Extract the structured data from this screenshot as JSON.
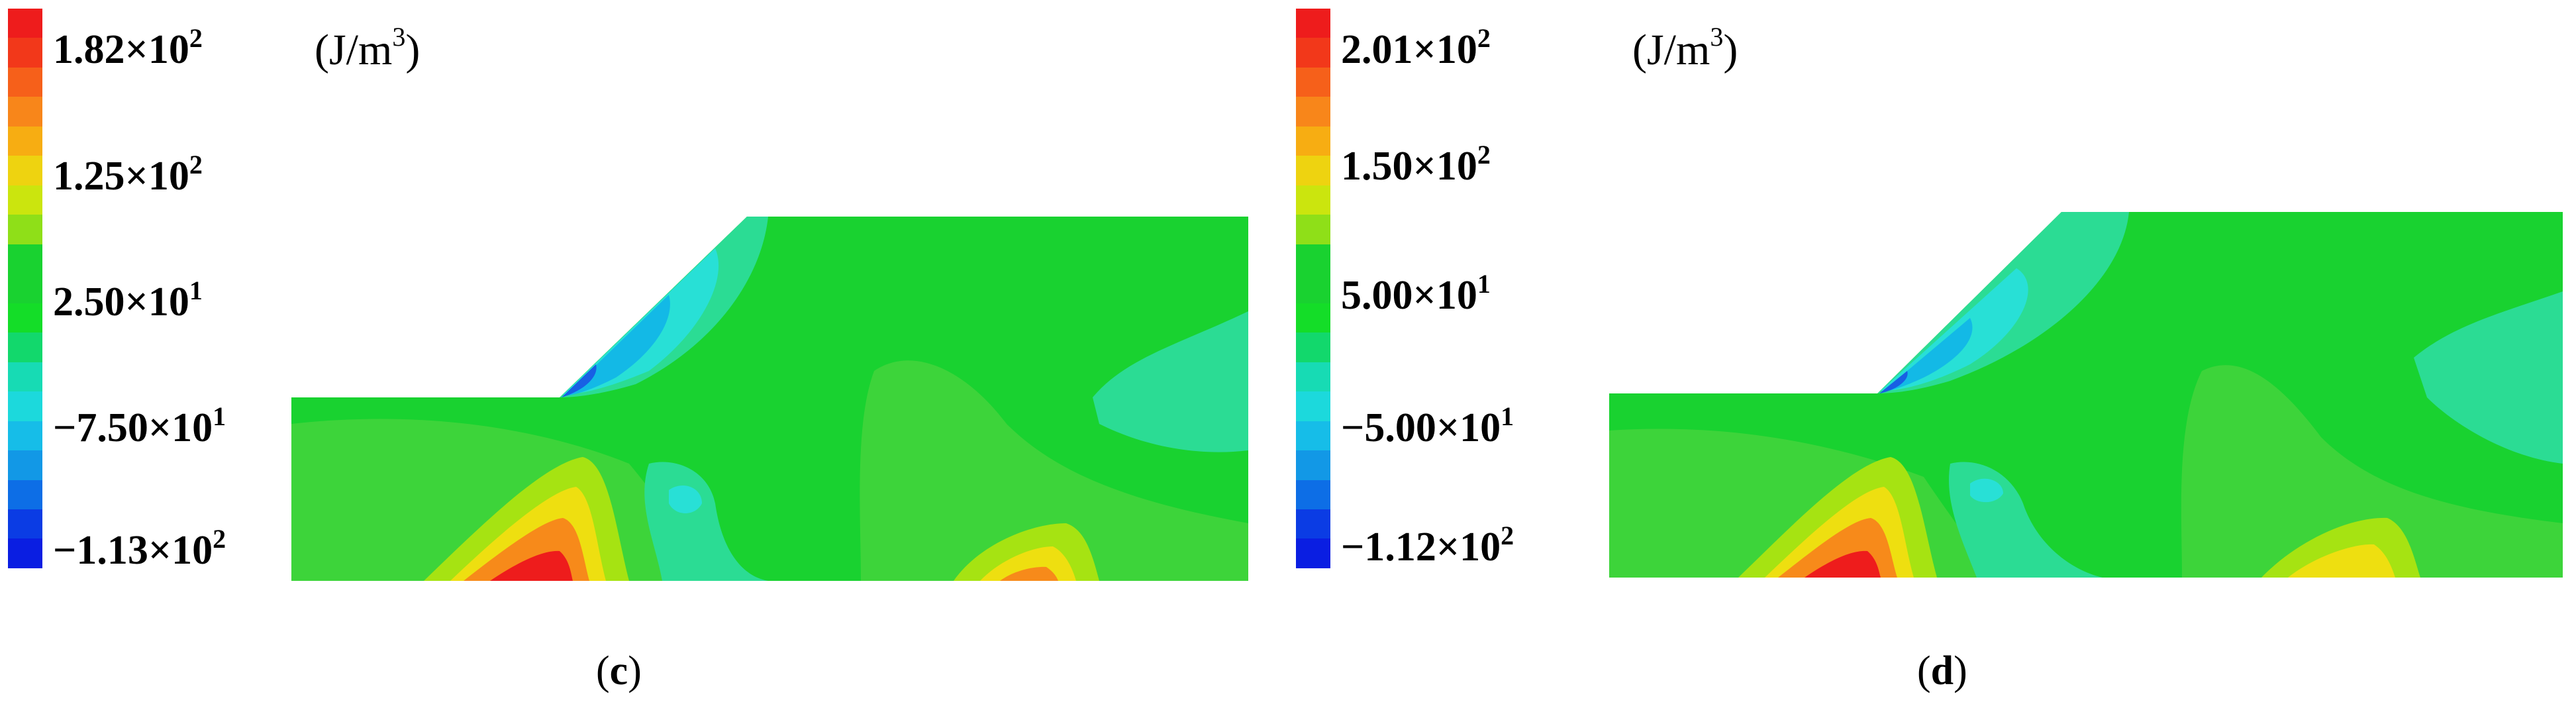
{
  "panels": [
    {
      "caption": "c",
      "unit": "(J/m³)",
      "unit_base": "(J/m",
      "unit_exp": "3",
      "unit_close": ")",
      "colorbar": {
        "labels": [
          {
            "mantissa": "1.82×10",
            "exp": "2"
          },
          {
            "mantissa": "1.25×10",
            "exp": "2"
          },
          {
            "mantissa": "2.50×10",
            "exp": "1"
          },
          {
            "mantissa": "−7.50×10",
            "exp": "1"
          },
          {
            "mantissa": "−1.13×10",
            "exp": "2"
          }
        ],
        "colors": [
          "#ee1c1c",
          "#f2381a",
          "#f6601a",
          "#f8861a",
          "#f7ad12",
          "#eed310",
          "#cbe50e",
          "#8fdf18",
          "#19d230",
          "#19d230",
          "#14dd28",
          "#12d86c",
          "#17dbb4",
          "#1cd9dc",
          "#16bde8",
          "#1298e6",
          "#0d6ee6",
          "#0b3ce4",
          "#0a1ee2"
        ]
      }
    },
    {
      "caption": "d",
      "unit": "(J/m³)",
      "unit_base": "(J/m",
      "unit_exp": "3",
      "unit_close": ")",
      "colorbar": {
        "labels": [
          {
            "mantissa": "2.01×10",
            "exp": "2"
          },
          {
            "mantissa": "1.50×10",
            "exp": "2"
          },
          {
            "mantissa": "5.00×10",
            "exp": "1"
          },
          {
            "mantissa": "−5.00×10",
            "exp": "1"
          },
          {
            "mantissa": "−1.12×10",
            "exp": "2"
          }
        ],
        "colors": [
          "#ee1c1c",
          "#f2381a",
          "#f6601a",
          "#f8861a",
          "#f7ad12",
          "#eed310",
          "#cbe50e",
          "#8fdf18",
          "#19d230",
          "#19d230",
          "#14dd28",
          "#12d86c",
          "#17dbb4",
          "#1cd9dc",
          "#16bde8",
          "#1298e6",
          "#0d6ee6",
          "#0b3ce4",
          "#0a1ee2"
        ]
      }
    }
  ],
  "colors": {
    "base_green": "#19d230",
    "light_green": "#3dd43a",
    "teal": "#2bdc94",
    "cyan": "#28e0d6",
    "light_blue": "#13b9e6",
    "blue": "#1860e4",
    "yellow_green": "#a6e312",
    "yellow": "#eedf10",
    "orange": "#f78a1a",
    "red": "#ee1c1c"
  }
}
